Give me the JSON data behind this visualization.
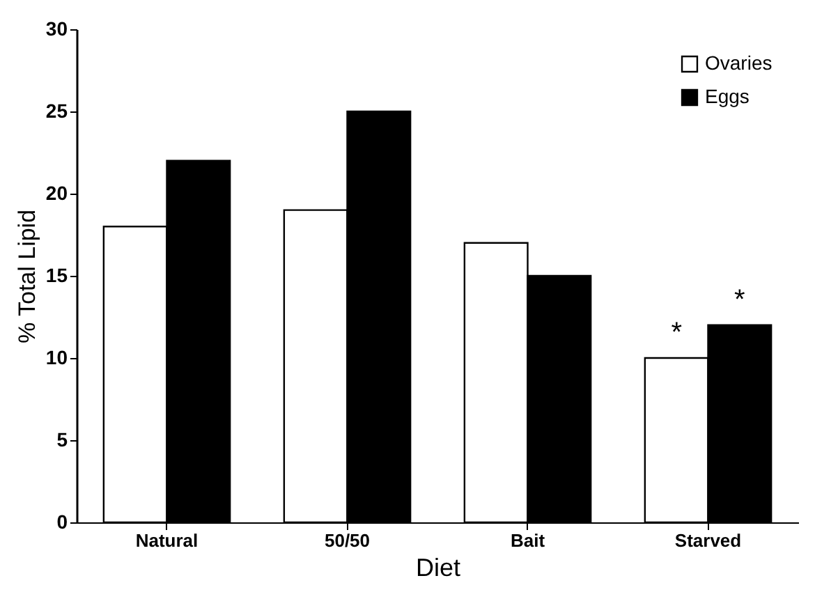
{
  "chart_data": {
    "type": "bar",
    "xlabel": "Diet",
    "ylabel": "% Total Lipid",
    "categories": [
      "Natural",
      "50/50",
      "Bait",
      "Starved"
    ],
    "series": [
      {
        "name": "Ovaries",
        "color": "#ffffff",
        "values": [
          18,
          19,
          17,
          10
        ]
      },
      {
        "name": "Eggs",
        "color": "#000000",
        "values": [
          22,
          25,
          15,
          12
        ]
      }
    ],
    "ylim": [
      0,
      30
    ],
    "yticks": [
      0,
      5,
      10,
      15,
      20,
      25,
      30
    ],
    "grid": false,
    "legend": "top right",
    "annotations": [
      {
        "text": "*",
        "x": "Starved",
        "y": 10
      },
      {
        "text": "*",
        "x": "Starved",
        "y": 12
      }
    ]
  }
}
